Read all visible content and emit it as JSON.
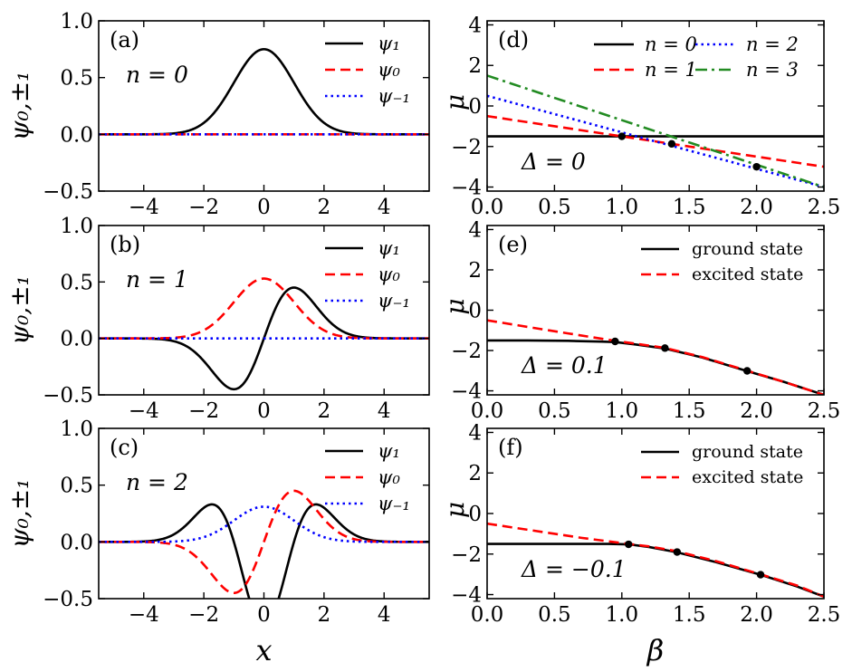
{
  "chart_data": [
    {
      "panel": "(a)",
      "type": "line",
      "annotation": "n = 0",
      "xlim": [
        -5.5,
        5.5
      ],
      "ylim": [
        -0.5,
        1.0
      ],
      "xticks": [
        -4,
        -2,
        0,
        2,
        4
      ],
      "yticks": [
        -0.5,
        0.0,
        0.5,
        1.0
      ],
      "xtick_labels": [
        "−4",
        "−2",
        "0",
        "2",
        "4"
      ],
      "ytick_labels": [
        "−0.5",
        "0.0",
        "0.5",
        "1.0"
      ],
      "xlabel": "",
      "ylabel": "ψ₀,±₁",
      "series": [
        {
          "name": "ψ₁",
          "color": "#000000",
          "style": "solid",
          "func": "gauss",
          "amp": 0.75
        },
        {
          "name": "ψ₀",
          "color": "#ff0000",
          "style": "dashed",
          "func": "zero",
          "amp": 0
        },
        {
          "name": "ψ₋₁",
          "color": "#0000ff",
          "style": "dotted",
          "func": "zero",
          "amp": 0
        }
      ]
    },
    {
      "panel": "(b)",
      "type": "line",
      "annotation": "n = 1",
      "xlim": [
        -5.5,
        5.5
      ],
      "ylim": [
        -0.5,
        1.0
      ],
      "xticks": [
        -4,
        -2,
        0,
        2,
        4
      ],
      "yticks": [
        -0.5,
        0.0,
        0.5,
        1.0
      ],
      "xtick_labels": [
        "−4",
        "−2",
        "0",
        "2",
        "4"
      ],
      "ytick_labels": [
        "−0.5",
        "0.0",
        "0.5",
        "1.0"
      ],
      "xlabel": "",
      "ylabel": "ψ₀,±₁",
      "series": [
        {
          "name": "ψ₁",
          "color": "#000000",
          "style": "solid",
          "func": "h1",
          "amp": 0.45
        },
        {
          "name": "ψ₀",
          "color": "#ff0000",
          "style": "dashed",
          "func": "gauss",
          "amp": 0.53
        },
        {
          "name": "ψ₋₁",
          "color": "#0000ff",
          "style": "dotted",
          "func": "zero",
          "amp": 0
        }
      ]
    },
    {
      "panel": "(c)",
      "type": "line",
      "annotation": "n = 2",
      "xlim": [
        -5.5,
        5.5
      ],
      "ylim": [
        -0.5,
        1.0
      ],
      "xticks": [
        -4,
        -2,
        0,
        2,
        4
      ],
      "yticks": [
        -0.5,
        0.0,
        0.5,
        1.0
      ],
      "xtick_labels": [
        "−4",
        "−2",
        "0",
        "2",
        "4"
      ],
      "ytick_labels": [
        "−0.5",
        "0.0",
        "0.5",
        "1.0"
      ],
      "xlabel": "x",
      "ylabel": "ψ₀,±₁",
      "series": [
        {
          "name": "ψ₁",
          "color": "#000000",
          "style": "solid",
          "func": "h2",
          "amp": 0.33
        },
        {
          "name": "ψ₀",
          "color": "#ff0000",
          "style": "dashed",
          "func": "h1",
          "amp": 0.45
        },
        {
          "name": "ψ₋₁",
          "color": "#0000ff",
          "style": "dotted",
          "func": "gauss",
          "amp": 0.31
        }
      ]
    },
    {
      "panel": "(d)",
      "type": "line",
      "annotation": "Δ = 0",
      "xlim": [
        0.0,
        2.5
      ],
      "ylim": [
        -4.2,
        4.2
      ],
      "xticks": [
        0.0,
        0.5,
        1.0,
        1.5,
        2.0,
        2.5
      ],
      "yticks": [
        -4,
        -2,
        0,
        2,
        4
      ],
      "xtick_labels": [
        "0.0",
        "0.5",
        "1.0",
        "1.5",
        "2.0",
        "2.5"
      ],
      "ytick_labels": [
        "−4",
        "−2",
        "0",
        "2",
        "4"
      ],
      "xlabel": "",
      "ylabel": "μ",
      "series": [
        {
          "name": "n = 0",
          "color": "#000000",
          "style": "solid",
          "x": [
            0.0,
            2.5
          ],
          "y": [
            -1.5,
            -1.5
          ]
        },
        {
          "name": "n = 1",
          "color": "#ff0000",
          "style": "dashed",
          "x": [
            0.0,
            2.5
          ],
          "y": [
            -0.5,
            -3.0
          ]
        },
        {
          "name": "n = 2",
          "color": "#0000ff",
          "style": "dotted",
          "x": [
            0.0,
            2.5
          ],
          "y": [
            0.5,
            -4.0
          ]
        },
        {
          "name": "n = 3",
          "color": "#228b22",
          "style": "dashdot",
          "x": [
            0.0,
            2.5
          ],
          "y": [
            1.5,
            -4.0
          ]
        }
      ],
      "markers": {
        "x": [
          1.0,
          1.37,
          2.0
        ],
        "y": [
          -1.5,
          -1.87,
          -3.0
        ]
      }
    },
    {
      "panel": "(e)",
      "type": "line",
      "annotation": "Δ = 0.1",
      "xlim": [
        0.0,
        2.5
      ],
      "ylim": [
        -4.2,
        4.2
      ],
      "xticks": [
        0.0,
        0.5,
        1.0,
        1.5,
        2.0,
        2.5
      ],
      "yticks": [
        -4,
        -2,
        0,
        2,
        4
      ],
      "xtick_labels": [
        "0.0",
        "0.5",
        "1.0",
        "1.5",
        "2.0",
        "2.5"
      ],
      "ytick_labels": [
        "−4",
        "−2",
        "0",
        "2",
        "4"
      ],
      "xlabel": "",
      "ylabel": "μ",
      "series": [
        {
          "name": "ground state",
          "color": "#000000",
          "style": "solid",
          "x": [
            0.0,
            0.3,
            0.6,
            0.85,
            0.95,
            1.1,
            1.32,
            1.6,
            1.93,
            2.2,
            2.5
          ],
          "y": [
            -1.5,
            -1.5,
            -1.52,
            -1.56,
            -1.58,
            -1.7,
            -1.9,
            -2.35,
            -3.02,
            -3.55,
            -4.2
          ]
        },
        {
          "name": "excited state",
          "color": "#ff0000",
          "style": "dashed",
          "x": [
            0.0,
            0.3,
            0.6,
            0.95,
            1.1,
            1.32,
            1.6,
            1.93,
            2.2,
            2.5
          ],
          "y": [
            -0.5,
            -0.83,
            -1.15,
            -1.52,
            -1.66,
            -1.87,
            -2.33,
            -3.0,
            -3.55,
            -4.2
          ]
        }
      ],
      "markers": {
        "x": [
          0.95,
          1.32,
          1.93
        ],
        "y": [
          -1.55,
          -1.88,
          -3.01
        ]
      }
    },
    {
      "panel": "(f)",
      "type": "line",
      "annotation": "Δ = −0.1",
      "xlim": [
        0.0,
        2.5
      ],
      "ylim": [
        -4.2,
        4.2
      ],
      "xticks": [
        0.0,
        0.5,
        1.0,
        1.5,
        2.0,
        2.5
      ],
      "yticks": [
        -4,
        -2,
        0,
        2,
        4
      ],
      "xtick_labels": [
        "0.0",
        "0.5",
        "1.0",
        "1.5",
        "2.0",
        "2.5"
      ],
      "ytick_labels": [
        "−4",
        "−2",
        "0",
        "2",
        "4"
      ],
      "xlabel": "β",
      "ylabel": "μ",
      "series": [
        {
          "name": "ground state",
          "color": "#000000",
          "style": "solid",
          "x": [
            0.0,
            0.5,
            0.9,
            1.05,
            1.2,
            1.4,
            1.7,
            2.03,
            2.3,
            2.5
          ],
          "y": [
            -1.5,
            -1.5,
            -1.5,
            -1.52,
            -1.65,
            -1.9,
            -2.4,
            -3.02,
            -3.6,
            -4.1
          ]
        },
        {
          "name": "excited state",
          "color": "#ff0000",
          "style": "dashed",
          "x": [
            0.0,
            0.3,
            0.7,
            1.05,
            1.2,
            1.4,
            1.7,
            2.03,
            2.3,
            2.5
          ],
          "y": [
            -0.5,
            -0.8,
            -1.2,
            -1.5,
            -1.62,
            -1.85,
            -2.35,
            -3.0,
            -3.55,
            -4.1
          ]
        }
      ],
      "markers": {
        "x": [
          1.05,
          1.41,
          2.03
        ],
        "y": [
          -1.52,
          -1.9,
          -3.02
        ]
      }
    }
  ]
}
